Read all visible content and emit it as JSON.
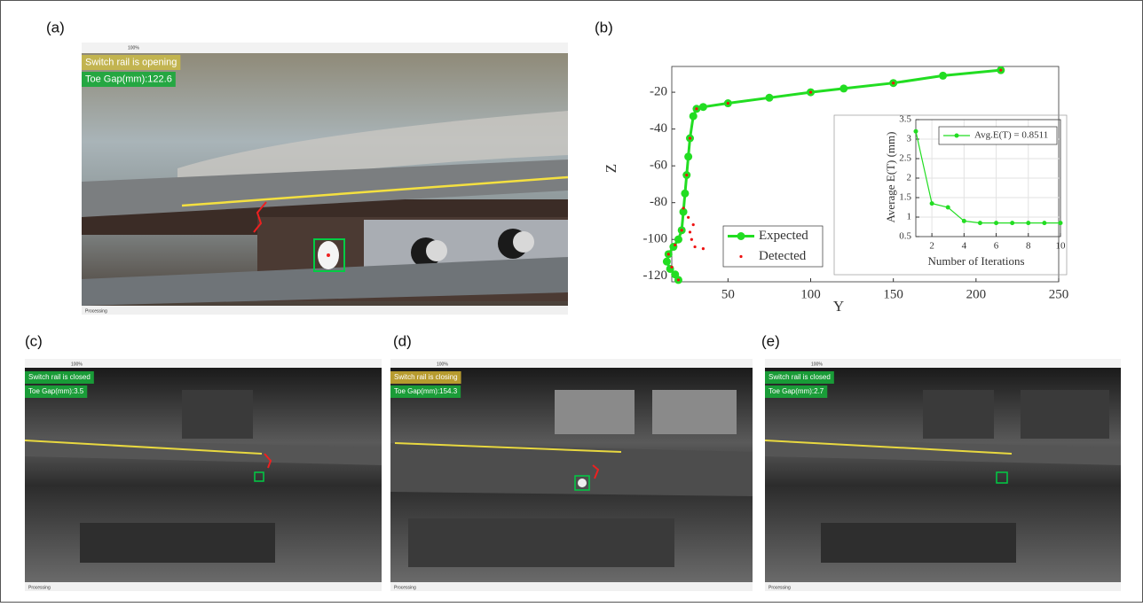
{
  "panels": [
    {
      "label": "(a)",
      "status_text": "Switch rail is opening",
      "gap_text": "Toe Gap(mm):122.6",
      "zoom": "100%",
      "footer": "Processing"
    },
    {
      "label": "(c)",
      "status_text": "Switch rail is closed",
      "gap_text": "Toe Gap(mm):3.5",
      "zoom": "100%",
      "footer": "Processing"
    },
    {
      "label": "(d)",
      "status_text": "Switch rail is closing",
      "gap_text": "Toe Gap(mm):154.3",
      "zoom": "100%",
      "footer": "Processing"
    },
    {
      "label": "(e)",
      "status_text": "Switch rail is closed",
      "gap_text": "Toe Gap(mm):2.7",
      "zoom": "100%",
      "footer": "Processing"
    }
  ],
  "chart_label": "(b)",
  "chart_data": [
    {
      "type": "line",
      "x_label": "Y",
      "y_label": "Z",
      "xlim": [
        16,
        250
      ],
      "ylim": [
        -123,
        -6
      ],
      "xticks": [
        50,
        100,
        150,
        200,
        250
      ],
      "yticks": [
        -20,
        -40,
        -60,
        -80,
        -100,
        -120
      ],
      "legend": "lower-left",
      "series": [
        {
          "name": "Expected",
          "color": "#22dd22",
          "mode": "lines+markers",
          "x": [
            215,
            180,
            150,
            120,
            100,
            75,
            50,
            35,
            31,
            29,
            27,
            26,
            25,
            24,
            23,
            22,
            20,
            17,
            14,
            13,
            15,
            18,
            20
          ],
          "values": [
            -8,
            -11,
            -15,
            -18,
            -20,
            -23,
            -26,
            -28,
            -29,
            -33,
            -45,
            -55,
            -65,
            -75,
            -85,
            -95,
            -100,
            -104,
            -108,
            -112,
            -116,
            -119,
            -122
          ]
        },
        {
          "name": "Detected",
          "color": "#ee1111",
          "mode": "markers",
          "x": [
            215,
            150,
            100,
            50,
            31,
            27,
            25,
            23,
            26,
            29,
            27,
            28,
            30,
            35,
            22,
            18,
            14,
            16,
            20
          ],
          "values": [
            -8,
            -15,
            -20,
            -26,
            -29,
            -45,
            -65,
            -83,
            -88,
            -92,
            -96,
            -100,
            -104,
            -105,
            -95,
            -103,
            -108,
            -115,
            -122
          ]
        }
      ]
    },
    {
      "type": "line",
      "x_label": "Number of Iterations",
      "y_label": "Average E(T) (mm)",
      "xlim": [
        1,
        10
      ],
      "ylim": [
        0.5,
        3.5
      ],
      "xticks": [
        2,
        4,
        6,
        8,
        10
      ],
      "yticks": [
        0.5,
        1,
        1.5,
        2,
        2.5,
        3,
        3.5
      ],
      "legend": "upper-right",
      "grid": true,
      "series": [
        {
          "name": "Avg.E(T) = 0.8511",
          "color": "#22dd22",
          "mode": "lines+markers",
          "x": [
            1,
            2,
            3,
            4,
            5,
            6,
            7,
            8,
            9,
            10
          ],
          "values": [
            3.2,
            1.35,
            1.25,
            0.9,
            0.85,
            0.85,
            0.85,
            0.85,
            0.85,
            0.85
          ]
        }
      ]
    }
  ]
}
